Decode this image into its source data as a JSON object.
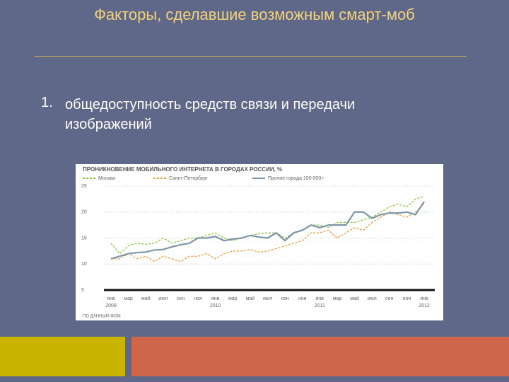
{
  "slide": {
    "title": "Факторы, сделавшие возможным смарт-моб",
    "bullet": {
      "number": "1.",
      "text": "общедоступность средств связи и передачи изображений"
    }
  },
  "chart_data": {
    "type": "line",
    "title": "ПРОНИКНОВЕНИЕ МОБИЛЬНОГО ИНТЕРНЕТА В ГОРОДАХ РОССИИ, %",
    "source": "ПО ДАННЫМ ФОМ",
    "categories": [
      "янв",
      null,
      "мар",
      null,
      "май",
      null,
      "июл",
      null,
      "сен",
      null,
      "ноя",
      null,
      "янв",
      null,
      "мар",
      null,
      "май",
      null,
      "июл",
      null,
      "сен",
      null,
      "ноя",
      null,
      "янв",
      null,
      "мар",
      null,
      "май",
      null,
      "июл",
      null,
      "сен",
      null,
      "ноя",
      null,
      "янв"
    ],
    "years": [
      "2009",
      null,
      null,
      null,
      null,
      null,
      null,
      null,
      null,
      null,
      null,
      null,
      "2010",
      null,
      null,
      null,
      null,
      null,
      null,
      null,
      null,
      null,
      null,
      null,
      "2011",
      null,
      null,
      null,
      null,
      null,
      null,
      null,
      null,
      null,
      null,
      null,
      "2012"
    ],
    "series": [
      {
        "name": "Москва",
        "color": "#8cc63f",
        "dash": true,
        "values": [
          14,
          12,
          13.5,
          14,
          13.8,
          14,
          15,
          14,
          14.5,
          15,
          15,
          15.5,
          16,
          15,
          14.5,
          15,
          15.5,
          15.8,
          16,
          16,
          15,
          16,
          16.5,
          17.5,
          17.5,
          17,
          18,
          18,
          18,
          18.5,
          19,
          20,
          21,
          21.5,
          21,
          22.5,
          23
        ]
      },
      {
        "name": "Санкт-Петербург",
        "color": "#f39c3a",
        "dash": true,
        "values": [
          11,
          11,
          12,
          11,
          11.5,
          10.5,
          11.5,
          11,
          10.5,
          11.5,
          11.5,
          12,
          11,
          12,
          12.5,
          12.5,
          12.8,
          12.3,
          12.5,
          13,
          13.5,
          14,
          14.5,
          16,
          16,
          16.5,
          15,
          16,
          17,
          16.5,
          18,
          19,
          20,
          19.5,
          19,
          20,
          21.5
        ]
      },
      {
        "name": "Прочие города 100 000+",
        "color": "#7f96a8",
        "dash": false,
        "values": [
          11,
          11.5,
          12,
          12.2,
          12.3,
          12.7,
          12.8,
          13.3,
          13.7,
          14,
          15,
          15,
          15.3,
          14.5,
          14.8,
          15,
          15.5,
          15.2,
          15,
          16,
          14.5,
          16,
          16.5,
          17.5,
          17,
          17.5,
          17.5,
          17.5,
          20,
          20,
          18.8,
          19.5,
          19.8,
          19.8,
          20,
          19.5,
          22
        ]
      }
    ],
    "ylim": [
      5,
      25
    ],
    "yticks": [
      5,
      10,
      15,
      20,
      25
    ],
    "grid": true
  }
}
